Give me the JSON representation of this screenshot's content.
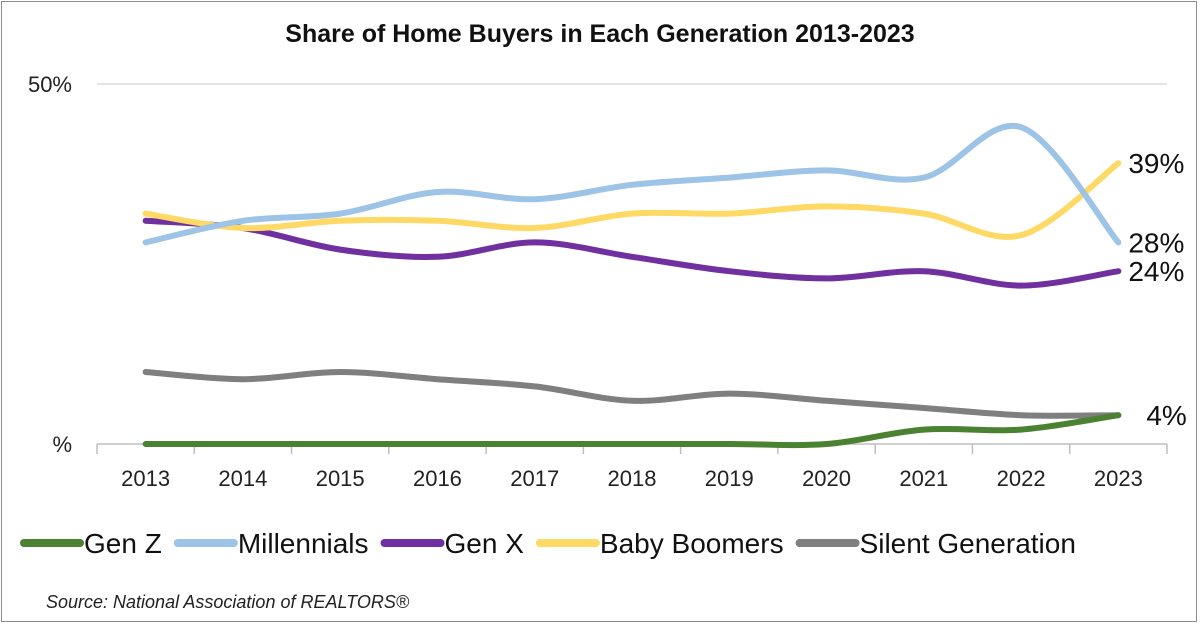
{
  "chart_data": {
    "type": "line",
    "title": "Share of Home Buyers in Each Generation 2013-2023",
    "source": "Source: National Association of REALTORS®",
    "categories": [
      "2013",
      "2014",
      "2015",
      "2016",
      "2017",
      "2018",
      "2019",
      "2020",
      "2021",
      "2022",
      "2023"
    ],
    "y_tick_labels": [
      "%",
      "50%"
    ],
    "ylim": [
      0,
      50
    ],
    "legend_position": "bottom",
    "series": [
      {
        "name": "Gen Z",
        "color": "#4a8232",
        "values": [
          0,
          0,
          0,
          0,
          0,
          0,
          0,
          0,
          2,
          2,
          4
        ],
        "end_label": "4%"
      },
      {
        "name": "Millennials",
        "color": "#9dc3e6",
        "values": [
          28,
          31,
          32,
          35,
          34,
          36,
          37,
          38,
          37,
          44,
          28
        ],
        "end_label": "28%"
      },
      {
        "name": "Gen X",
        "color": "#7030a0",
        "values": [
          31,
          30,
          27,
          26,
          28,
          26,
          24,
          23,
          24,
          22,
          24
        ],
        "end_label": "24%"
      },
      {
        "name": "Baby Boomers",
        "color": "#ffd966",
        "values": [
          32,
          30,
          31,
          31,
          30,
          32,
          32,
          33,
          32,
          29,
          39
        ],
        "end_label": "39%"
      },
      {
        "name": "Silent Generation",
        "color": "#7f7f7f",
        "values": [
          10,
          9,
          10,
          9,
          8,
          6,
          7,
          6,
          5,
          4,
          4
        ],
        "end_label": ""
      }
    ]
  }
}
